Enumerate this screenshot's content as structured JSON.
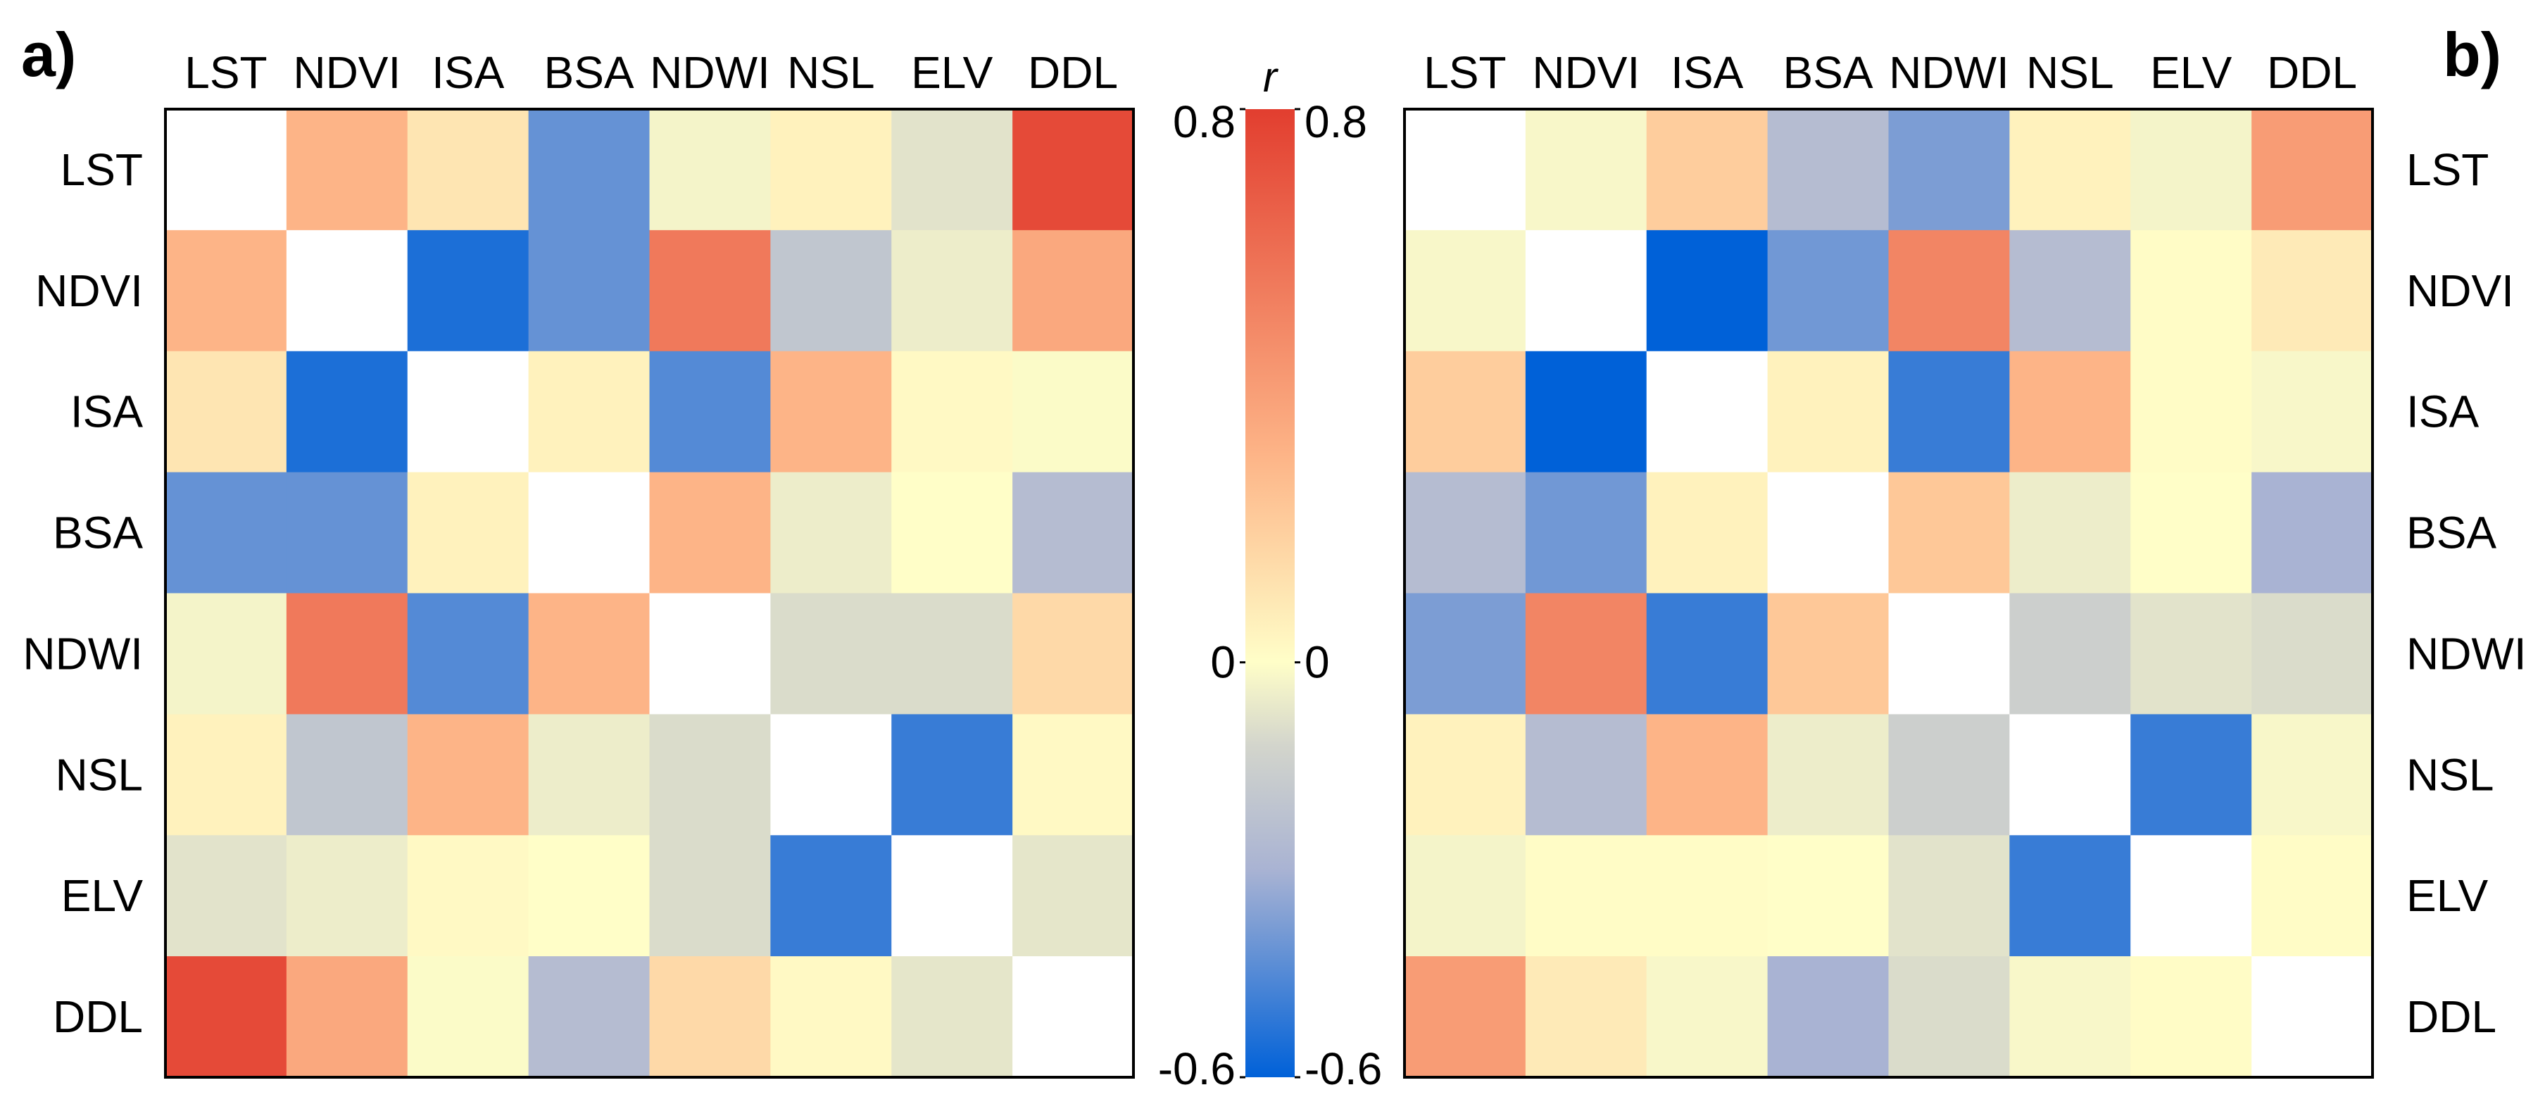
{
  "chart_data": [
    {
      "type": "heatmap",
      "panel_label": "a)",
      "variables": [
        "LST",
        "NDVI",
        "ISA",
        "BSA",
        "NDWI",
        "NSL",
        "ELV",
        "DDL"
      ],
      "column_labels_position": "top",
      "row_labels_position": "left",
      "diagonal": "blank",
      "values": [
        [
          null,
          0.3,
          0.1,
          -0.42,
          -0.03,
          0.05,
          -0.08,
          0.75
        ],
        [
          0.3,
          null,
          -0.55,
          -0.42,
          0.55,
          -0.2,
          -0.05,
          0.35
        ],
        [
          0.1,
          -0.55,
          null,
          0.05,
          -0.45,
          0.3,
          0.02,
          -0.01
        ],
        [
          -0.42,
          -0.42,
          0.05,
          null,
          0.3,
          -0.05,
          0.0,
          -0.25
        ],
        [
          -0.03,
          0.55,
          -0.45,
          0.3,
          null,
          -0.1,
          -0.1,
          0.15
        ],
        [
          0.05,
          -0.2,
          0.3,
          -0.05,
          -0.1,
          null,
          -0.5,
          0.02
        ],
        [
          -0.08,
          -0.05,
          0.02,
          0.0,
          -0.1,
          -0.5,
          null,
          -0.07
        ],
        [
          0.75,
          0.35,
          -0.01,
          -0.25,
          0.15,
          0.02,
          -0.07,
          null
        ]
      ]
    },
    {
      "type": "heatmap",
      "panel_label": "b)",
      "variables": [
        "LST",
        "NDVI",
        "ISA",
        "BSA",
        "NDWI",
        "NSL",
        "ELV",
        "DDL"
      ],
      "column_labels_position": "top",
      "row_labels_position": "right",
      "diagonal": "blank",
      "values": [
        [
          null,
          -0.02,
          0.2,
          -0.25,
          -0.38,
          0.05,
          -0.03,
          0.4
        ],
        [
          -0.02,
          null,
          -0.6,
          -0.4,
          0.5,
          -0.25,
          0.01,
          0.08
        ],
        [
          0.2,
          -0.6,
          null,
          0.05,
          -0.5,
          0.3,
          0.01,
          -0.02
        ],
        [
          -0.25,
          -0.4,
          0.05,
          null,
          0.22,
          -0.05,
          0.0,
          -0.3
        ],
        [
          -0.38,
          0.5,
          -0.5,
          0.22,
          null,
          -0.15,
          -0.08,
          -0.1
        ],
        [
          0.05,
          -0.25,
          0.3,
          -0.05,
          -0.15,
          null,
          -0.5,
          -0.02
        ],
        [
          -0.03,
          0.01,
          0.01,
          0.0,
          -0.08,
          -0.5,
          null,
          0.01
        ],
        [
          0.4,
          0.08,
          -0.02,
          -0.3,
          -0.1,
          -0.02,
          0.01,
          null
        ]
      ]
    }
  ],
  "colorbar": {
    "title": "r",
    "min": -0.6,
    "max": 0.8,
    "ticks": [
      {
        "value": 0.8,
        "label": "0.8"
      },
      {
        "value": 0,
        "label": "0"
      },
      {
        "value": -0.6,
        "label": "-0.6"
      }
    ],
    "color_stops": [
      {
        "value": -0.6,
        "color": "#0061d8"
      },
      {
        "value": -0.3,
        "color": "#a9b3d3"
      },
      {
        "value": -0.12,
        "color": "#d3d5cc"
      },
      {
        "value": 0.0,
        "color": "#fffec8"
      },
      {
        "value": 0.3,
        "color": "#fdb487"
      },
      {
        "value": 0.8,
        "color": "#e23e2f"
      }
    ],
    "diagonal_color": "#ffffff"
  }
}
